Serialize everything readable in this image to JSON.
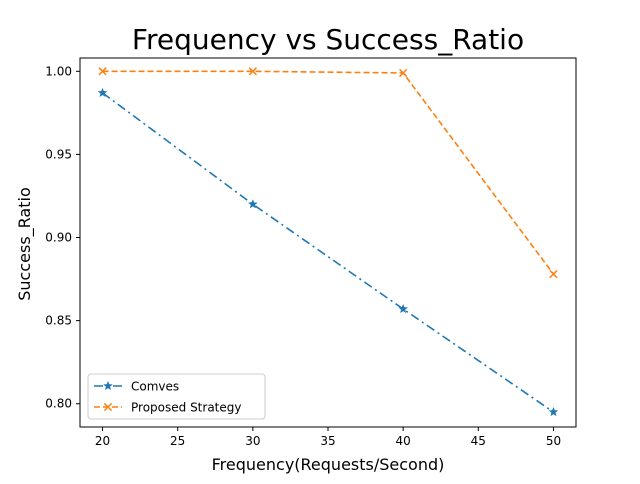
{
  "chart_data": {
    "type": "line",
    "title": "Frequency vs Success_Ratio",
    "xlabel": "Frequency(Requests/Second)",
    "ylabel": "Success_Ratio",
    "xlim": [
      18.5,
      51.5
    ],
    "ylim": [
      0.786,
      1.008
    ],
    "xticks": [
      20,
      25,
      30,
      35,
      40,
      45,
      50
    ],
    "yticks": [
      0.8,
      0.85,
      0.9,
      0.95,
      1.0
    ],
    "xtick_labels": [
      "20",
      "25",
      "30",
      "35",
      "40",
      "45",
      "50"
    ],
    "ytick_labels": [
      "0.80",
      "0.85",
      "0.90",
      "0.95",
      "1.00"
    ],
    "grid": false,
    "legend_position": "lower-left",
    "x": [
      20,
      30,
      40,
      50
    ],
    "series": [
      {
        "name": "Comves",
        "values": [
          0.987,
          0.92,
          0.857,
          0.795
        ],
        "color": "#1f77b4",
        "line_style": "dash-dot",
        "marker": "star"
      },
      {
        "name": "Proposed Strategy",
        "values": [
          1.0,
          1.0,
          0.999,
          0.878
        ],
        "color": "#ff7f0e",
        "line_style": "dashed",
        "marker": "x"
      }
    ]
  }
}
